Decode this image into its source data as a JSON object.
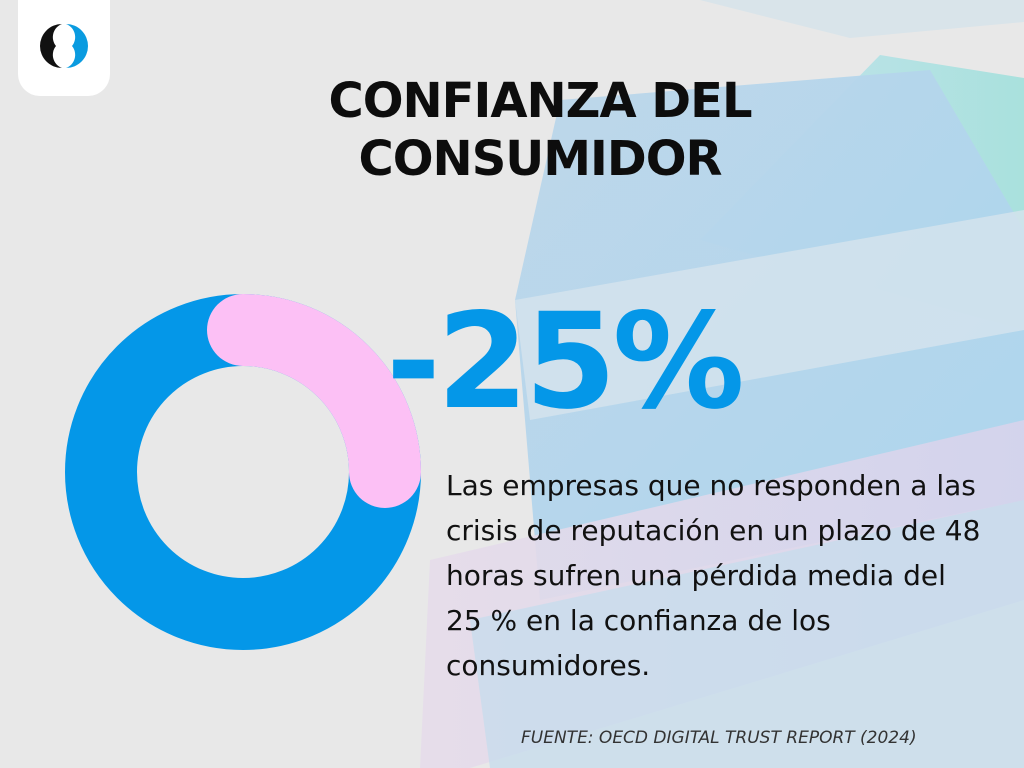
{
  "title": "CONFIANZA DEL CONSUMIDOR",
  "description": "Las empresas que no responden a las crisis de reputación en un plazo de 48 horas sufren una pérdida media del 25 % en la confianza de los consumidores.",
  "source": "FUENTE: OECD DIGITAL TRUST REPORT (2024)",
  "logo_icon": "brand-swirl-logo",
  "colors": {
    "background": "#e8e8e8",
    "accent_blue": "#0497e8",
    "accent_pink": "#fcc0f5",
    "text": "#0d0d0d"
  },
  "chart_data": {
    "type": "pie",
    "style": "donut",
    "big_label": "-25%",
    "slices": [
      {
        "value": 25,
        "color": "#fcc0f5",
        "highlighted": true
      },
      {
        "value": 75,
        "color": "#0497e8"
      }
    ]
  }
}
